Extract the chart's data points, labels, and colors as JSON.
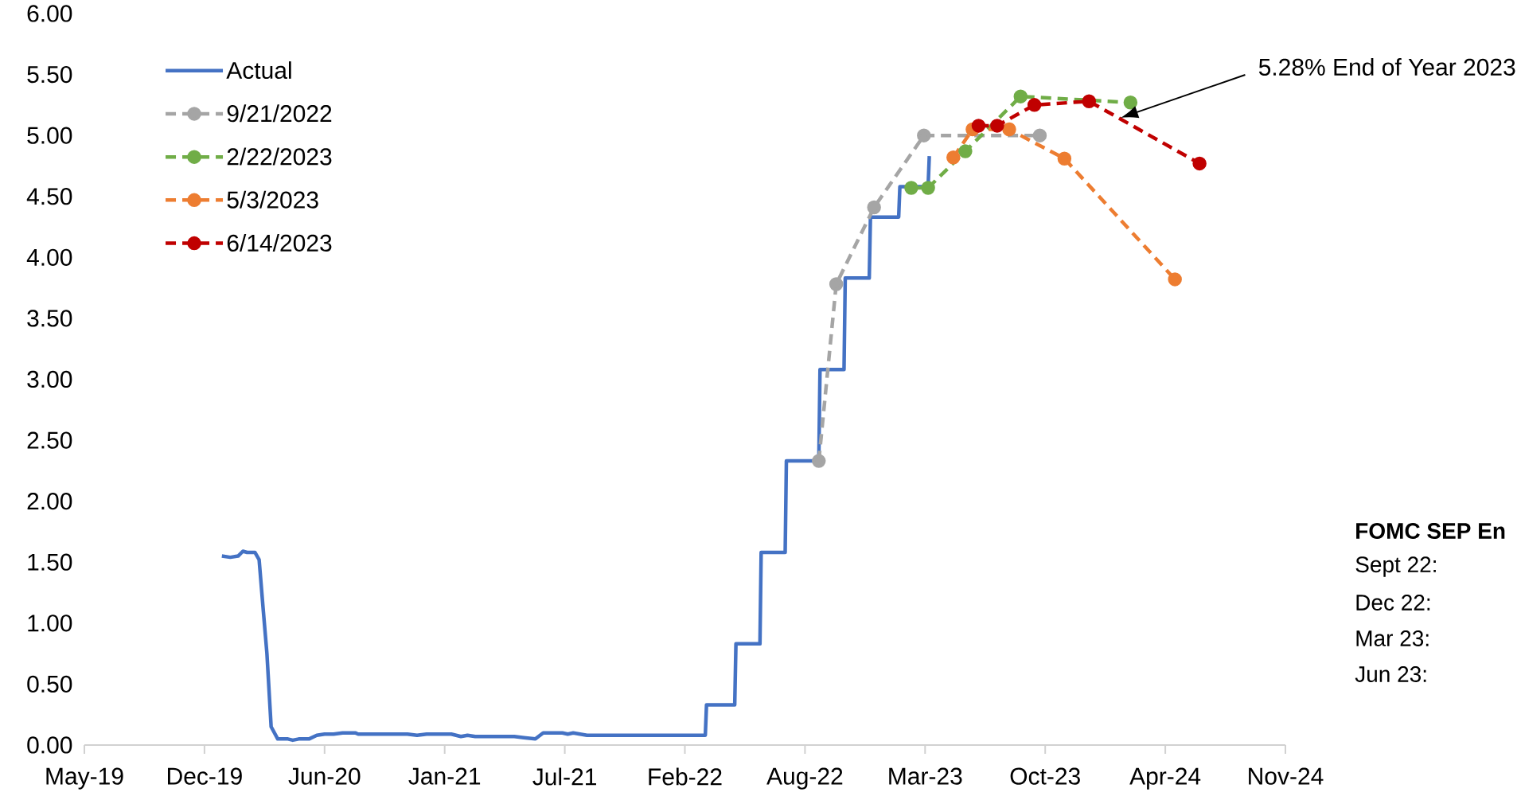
{
  "chart_data": {
    "type": "line",
    "xlim": [
      "2019-05-17",
      "2024-11-06"
    ],
    "xticks": [
      {
        "value": "2019-05-17",
        "label": "May-19"
      },
      {
        "value": "2019-12-03",
        "label": "Dec-19"
      },
      {
        "value": "2020-06-20",
        "label": "Jun-20"
      },
      {
        "value": "2021-01-06",
        "label": "Jan-21"
      },
      {
        "value": "2021-07-25",
        "label": "Jul-21"
      },
      {
        "value": "2022-02-10",
        "label": "Feb-22"
      },
      {
        "value": "2022-08-29",
        "label": "Aug-22"
      },
      {
        "value": "2023-03-17",
        "label": "Mar-23"
      },
      {
        "value": "2023-10-03",
        "label": "Oct-23"
      },
      {
        "value": "2024-04-20",
        "label": "Apr-24"
      },
      {
        "value": "2024-11-06",
        "label": "Nov-24"
      }
    ],
    "ylim": [
      0,
      6
    ],
    "yticks": [
      {
        "value": 0,
        "label": "0.00"
      },
      {
        "value": 0.5,
        "label": "0.50"
      },
      {
        "value": 1,
        "label": "1.00"
      },
      {
        "value": 1.5,
        "label": "1.50"
      },
      {
        "value": 2,
        "label": "2.00"
      },
      {
        "value": 2.5,
        "label": "2.50"
      },
      {
        "value": 3,
        "label": "3.00"
      },
      {
        "value": 3.5,
        "label": "3.50"
      },
      {
        "value": 4,
        "label": "4.00"
      },
      {
        "value": 4.5,
        "label": "4.50"
      },
      {
        "value": 5,
        "label": "5.00"
      },
      {
        "value": 5.5,
        "label": "5.50"
      },
      {
        "value": 6,
        "label": "6.00"
      }
    ],
    "legend": "top left",
    "series": [
      {
        "name": "Actual",
        "color": "#4472c4",
        "marker": "none",
        "line_style": "solid",
        "x": [
          "2020-01-01",
          "2020-01-15",
          "2020-01-28",
          "2020-02-05",
          "2020-02-12",
          "2020-02-25",
          "2020-03-03",
          "2020-03-10",
          "2020-03-16",
          "2020-03-23",
          "2020-04-03",
          "2020-04-20",
          "2020-04-28",
          "2020-05-08",
          "2020-05-25",
          "2020-06-07",
          "2020-06-20",
          "2020-07-05",
          "2020-07-20",
          "2020-08-10",
          "2020-08-15",
          "2020-11-05",
          "2020-11-21",
          "2020-12-07",
          "2021-01-17",
          "2021-02-02",
          "2021-02-13",
          "2021-02-26",
          "2021-05-02",
          "2021-05-18",
          "2021-06-06",
          "2021-06-19",
          "2021-07-21",
          "2021-07-30",
          "2021-08-08",
          "2021-08-31",
          "2022-03-16",
          "2022-03-18",
          "2022-05-04",
          "2022-05-06",
          "2022-06-15",
          "2022-06-17",
          "2022-07-27",
          "2022-07-29",
          "2022-09-21",
          "2022-09-23",
          "2022-11-02",
          "2022-11-04",
          "2022-12-14",
          "2022-12-16",
          "2023-02-01",
          "2023-02-03",
          "2023-03-22",
          "2023-03-24"
        ],
        "values": [
          1.55,
          1.54,
          1.55,
          1.59,
          1.58,
          1.58,
          1.52,
          1.1,
          0.75,
          0.15,
          0.05,
          0.05,
          0.04,
          0.05,
          0.05,
          0.08,
          0.09,
          0.09,
          0.1,
          0.1,
          0.09,
          0.09,
          0.08,
          0.09,
          0.09,
          0.07,
          0.08,
          0.07,
          0.07,
          0.06,
          0.05,
          0.1,
          0.1,
          0.09,
          0.1,
          0.08,
          0.08,
          0.33,
          0.33,
          0.83,
          0.83,
          1.58,
          1.58,
          2.33,
          2.33,
          3.08,
          3.08,
          3.83,
          3.83,
          4.33,
          4.33,
          4.58,
          4.58,
          4.83
        ]
      },
      {
        "name": "9/21/2022",
        "color": "#a5a5a5",
        "marker": "circle",
        "line_style": "dashed",
        "x": [
          "2022-09-21",
          "2022-10-20",
          "2022-12-22",
          "2023-03-15",
          "2023-09-24"
        ],
        "values": [
          2.33,
          3.78,
          4.41,
          5.0,
          5.0
        ]
      },
      {
        "name": "2/22/2023",
        "color": "#70ad47",
        "marker": "circle",
        "line_style": "dashed",
        "x": [
          "2023-02-22",
          "2023-03-22",
          "2023-05-23",
          "2023-08-23",
          "2024-02-22"
        ],
        "values": [
          4.57,
          4.57,
          4.87,
          5.32,
          5.27
        ]
      },
      {
        "name": "5/3/2023",
        "color": "#ed7d31",
        "marker": "circle",
        "line_style": "dashed",
        "x": [
          "2023-05-03",
          "2023-06-04",
          "2023-08-04",
          "2023-11-04",
          "2024-05-06"
        ],
        "values": [
          4.82,
          5.05,
          5.05,
          4.81,
          3.82
        ]
      },
      {
        "name": "6/14/2023",
        "color": "#c00000",
        "marker": "circle",
        "line_style": "dashed",
        "x": [
          "2023-06-14",
          "2023-07-15",
          "2023-09-15",
          "2023-12-15",
          "2024-06-16"
        ],
        "values": [
          5.08,
          5.08,
          5.25,
          5.28,
          4.77
        ]
      }
    ],
    "annotations": [
      "5.28% End of Year 2023",
      "FOMC SEP En",
      "Sept 22:",
      "Dec 22:",
      "Mar 23:",
      "Jun 23:"
    ]
  }
}
